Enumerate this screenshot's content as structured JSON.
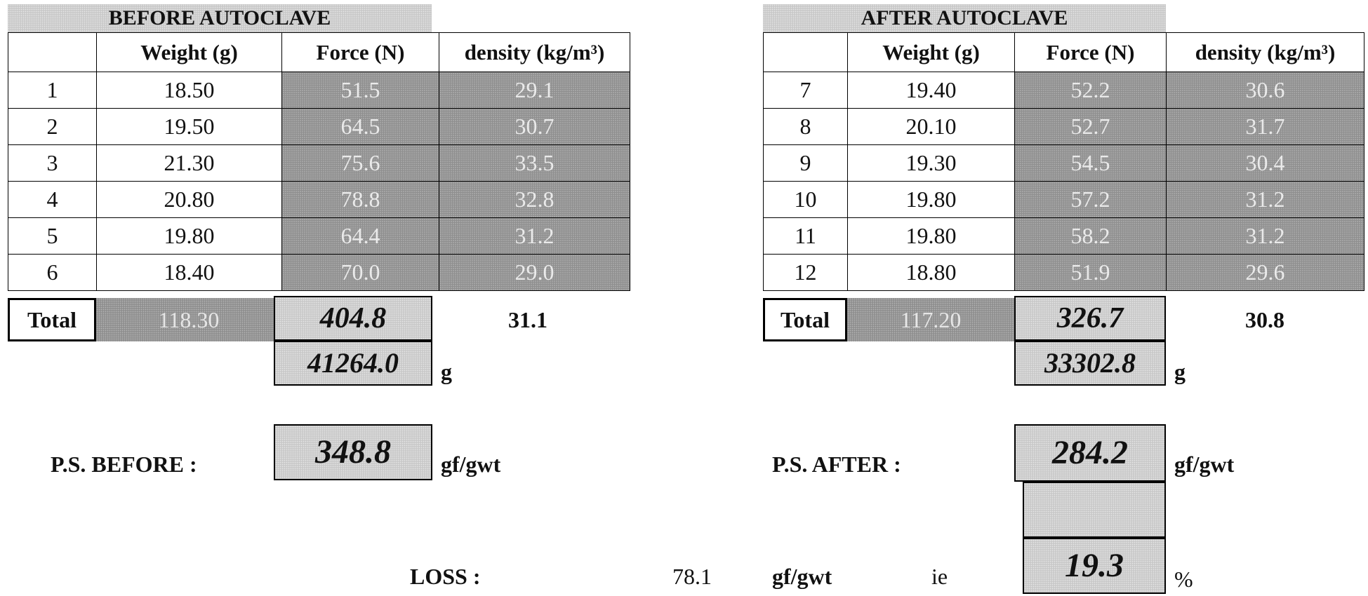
{
  "before": {
    "title": "BEFORE AUTOCLAVE",
    "headers": [
      "",
      "Weight (g)",
      "Force (N)",
      "density (kg/m³)"
    ],
    "rows": [
      {
        "id": "1",
        "weight": "18.50",
        "force": "51.5",
        "density": "29.1"
      },
      {
        "id": "2",
        "weight": "19.50",
        "force": "64.5",
        "density": "30.7"
      },
      {
        "id": "3",
        "weight": "21.30",
        "force": "75.6",
        "density": "33.5"
      },
      {
        "id": "4",
        "weight": "20.80",
        "force": "78.8",
        "density": "32.8"
      },
      {
        "id": "5",
        "weight": "19.80",
        "force": "64.4",
        "density": "31.2"
      },
      {
        "id": "6",
        "weight": "18.40",
        "force": "70.0",
        "density": "29.0"
      }
    ],
    "total_label": "Total",
    "total_weight": "118.30",
    "total_force": "404.8",
    "total_density": "31.1",
    "grams_value": "41264.0",
    "grams_unit": "g",
    "ps_label": "P.S. BEFORE :",
    "ps_value": "348.8",
    "ps_unit": "gf/gwt"
  },
  "after": {
    "title": "AFTER AUTOCLAVE",
    "headers": [
      "",
      "Weight (g)",
      "Force (N)",
      "density (kg/m³)"
    ],
    "rows": [
      {
        "id": "7",
        "weight": "19.40",
        "force": "52.2",
        "density": "30.6"
      },
      {
        "id": "8",
        "weight": "20.10",
        "force": "52.7",
        "density": "31.7"
      },
      {
        "id": "9",
        "weight": "19.30",
        "force": "54.5",
        "density": "30.4"
      },
      {
        "id": "10",
        "weight": "19.80",
        "force": "57.2",
        "density": "31.2"
      },
      {
        "id": "11",
        "weight": "19.80",
        "force": "58.2",
        "density": "31.2"
      },
      {
        "id": "12",
        "weight": "18.80",
        "force": "51.9",
        "density": "29.6"
      }
    ],
    "total_label": "Total",
    "total_weight": "117.20",
    "total_force": "326.7",
    "total_density": "30.8",
    "grams_value": "33302.8",
    "grams_unit": "g",
    "ps_label": "P.S. AFTER :",
    "ps_value": "284.2",
    "ps_unit": "gf/gwt"
  },
  "loss": {
    "label": "LOSS :",
    "value": "78.1",
    "unit": "gf/gwt",
    "ie": "ie",
    "percent_value": "19.3",
    "percent_unit": "%"
  }
}
